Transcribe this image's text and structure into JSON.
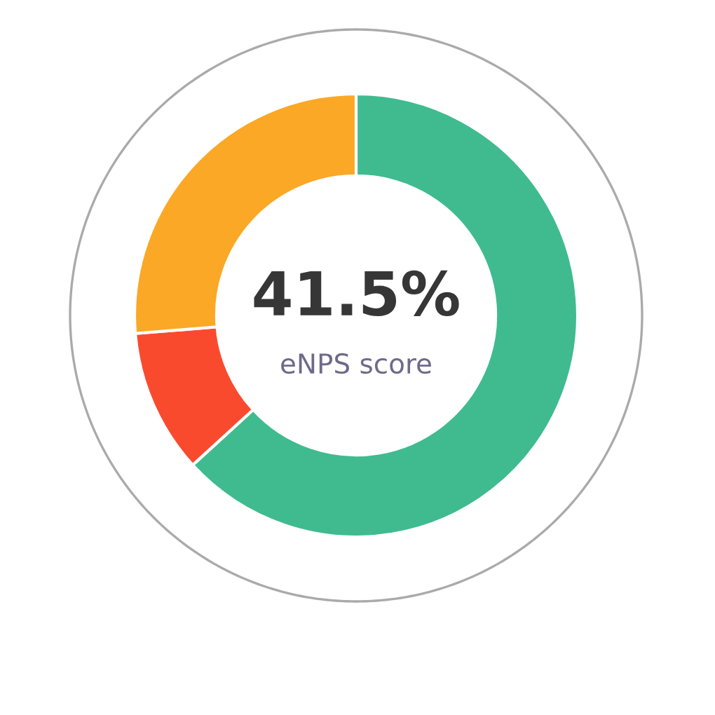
{
  "chart_data": {
    "type": "donut",
    "title": "41.5%",
    "subtitle": "eNPS score",
    "categories": [
      null,
      null,
      null
    ],
    "values": [
      63.2,
      10.5,
      26.3
    ],
    "colors": [
      "#3fbb8f",
      "#fa4a2e",
      "#fba826"
    ],
    "legend": false
  }
}
